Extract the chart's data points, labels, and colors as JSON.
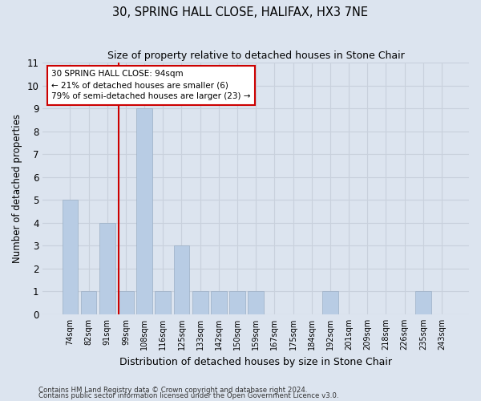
{
  "title": "30, SPRING HALL CLOSE, HALIFAX, HX3 7NE",
  "subtitle": "Size of property relative to detached houses in Stone Chair",
  "xlabel": "Distribution of detached houses by size in Stone Chair",
  "ylabel": "Number of detached properties",
  "categories": [
    "74sqm",
    "82sqm",
    "91sqm",
    "99sqm",
    "108sqm",
    "116sqm",
    "125sqm",
    "133sqm",
    "142sqm",
    "150sqm",
    "159sqm",
    "167sqm",
    "175sqm",
    "184sqm",
    "192sqm",
    "201sqm",
    "209sqm",
    "218sqm",
    "226sqm",
    "235sqm",
    "243sqm"
  ],
  "values": [
    5,
    1,
    4,
    1,
    9,
    1,
    3,
    1,
    1,
    1,
    1,
    0,
    0,
    0,
    1,
    0,
    0,
    0,
    0,
    1,
    0
  ],
  "bar_color": "#b8cce4",
  "bar_edge_color": "#9aaec4",
  "grid_color": "#c8d0dc",
  "background_color": "#dce4ef",
  "red_line_x": 2.62,
  "annotation_text": "30 SPRING HALL CLOSE: 94sqm\n← 21% of detached houses are smaller (6)\n79% of semi-detached houses are larger (23) →",
  "annotation_box_color": "#ffffff",
  "annotation_box_edge": "#cc0000",
  "red_line_color": "#cc0000",
  "ylim": [
    0,
    11
  ],
  "yticks": [
    0,
    1,
    2,
    3,
    4,
    5,
    6,
    7,
    8,
    9,
    10,
    11
  ],
  "footer1": "Contains HM Land Registry data © Crown copyright and database right 2024.",
  "footer2": "Contains public sector information licensed under the Open Government Licence v3.0."
}
